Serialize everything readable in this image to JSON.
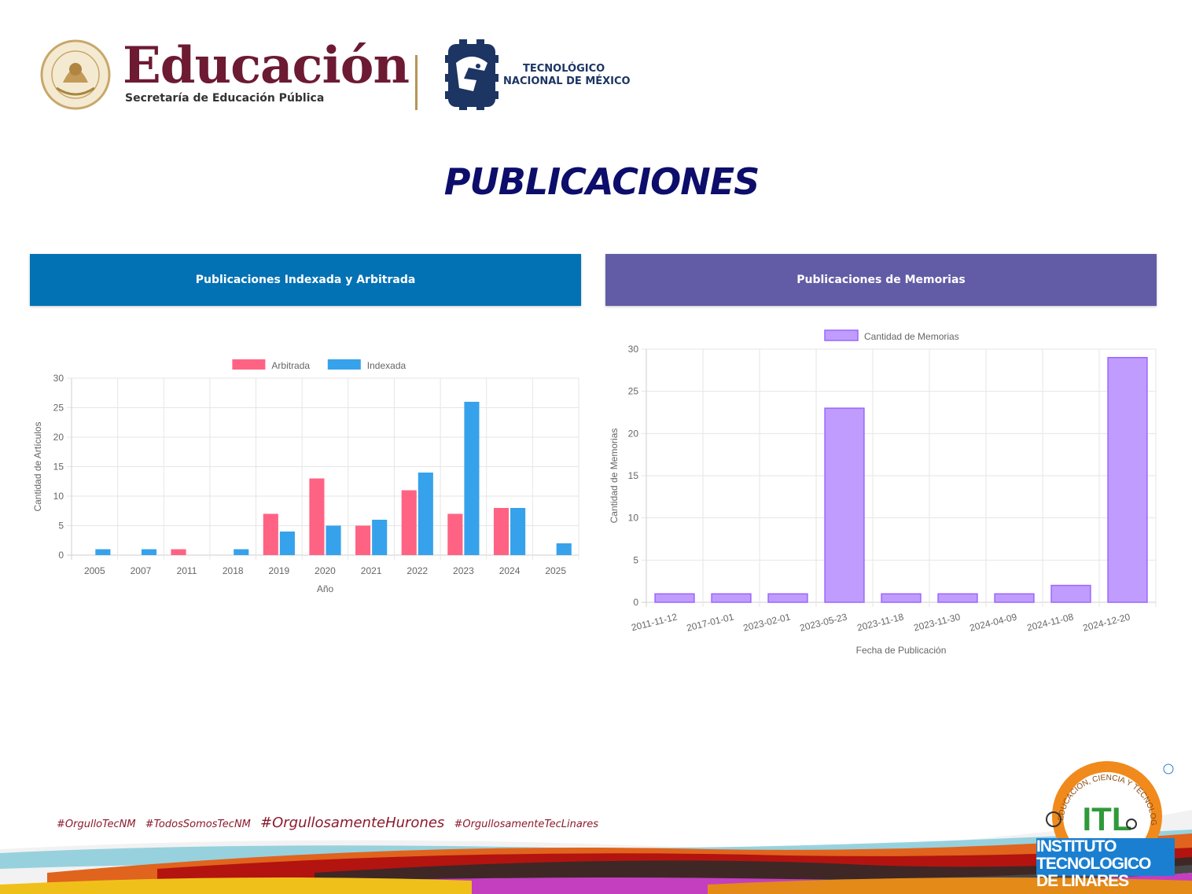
{
  "header": {
    "brand_title": "Educación",
    "brand_subtitle": "Secretaría de Educación Pública",
    "tec_line1": "TECNOLÓGICO",
    "tec_line2": "NACIONAL DE MÉXICO",
    "page_title": "PUBLICACIONES"
  },
  "panels": {
    "left_title": "Publicaciones Indexada y Arbitrada",
    "right_title": "Publicaciones de Memorias"
  },
  "colors": {
    "arbitrada": "#ff6384",
    "indexada": "#36a2eb",
    "memorias": "#c09cff",
    "memorias_border": "#9966ff",
    "left_header": "#0272b5",
    "right_header": "#625ca6"
  },
  "chart_data": [
    {
      "type": "bar",
      "categories": [
        "2005",
        "2007",
        "2011",
        "2018",
        "2019",
        "2020",
        "2021",
        "2022",
        "2023",
        "2024",
        "2025"
      ],
      "series": [
        {
          "name": "Arbitrada",
          "values": [
            0,
            0,
            1,
            0,
            7,
            13,
            5,
            11,
            7,
            8,
            0
          ]
        },
        {
          "name": "Indexada",
          "values": [
            1,
            1,
            0,
            1,
            4,
            5,
            6,
            14,
            26,
            8,
            2
          ]
        }
      ],
      "yticks": [
        "0",
        "5",
        "10",
        "15",
        "20",
        "25",
        "30"
      ],
      "ylim": [
        0,
        30
      ],
      "xlabel": "Año",
      "ylabel": "Cantidad de Artículos",
      "legend": "top",
      "grid": true
    },
    {
      "type": "bar",
      "categories": [
        "2011-11-12",
        "2017-01-01",
        "2023-02-01",
        "2023-05-23",
        "2023-11-18",
        "2023-11-30",
        "2024-04-09",
        "2024-11-08",
        "2024-12-20"
      ],
      "series": [
        {
          "name": "Cantidad de Memorias",
          "values": [
            1,
            1,
            1,
            23,
            1,
            1,
            1,
            2,
            29
          ]
        }
      ],
      "yticks": [
        "0",
        "5",
        "10",
        "15",
        "20",
        "25",
        "30"
      ],
      "ylim": [
        0,
        30
      ],
      "xlabel": "Fecha de Publicación",
      "ylabel": "Cantidad de Memorias",
      "legend": "top",
      "grid": true
    }
  ],
  "footer": {
    "hashtags": [
      "#OrgulloTecNM",
      "#TodosSomosTecNM",
      "#OrgullosamenteHurones",
      "#OrgullosamenteTecLinares"
    ],
    "itl_letters": "ITL",
    "itl_line1": "INSTITUTO",
    "itl_line2": "TECNOLOGICO DE LINARES",
    "itl_arc": "EDUCACION, CIENCIA Y TECNOLOGIA"
  }
}
